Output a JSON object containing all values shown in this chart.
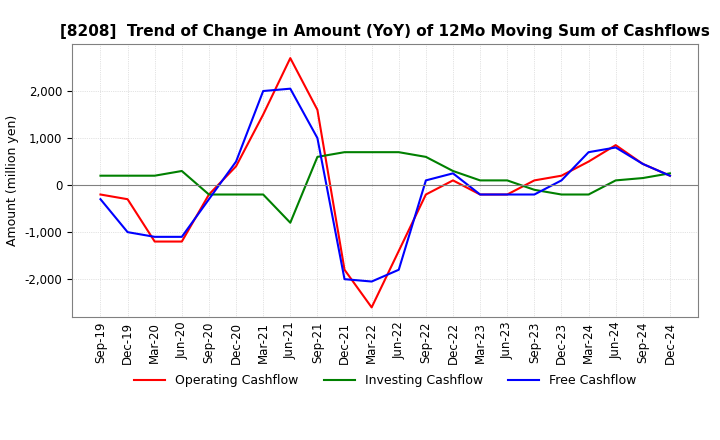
{
  "title": "[8208]  Trend of Change in Amount (YoY) of 12Mo Moving Sum of Cashflows",
  "ylabel": "Amount (million yen)",
  "ylim": [
    -2800,
    3000
  ],
  "yticks": [
    -2000,
    -1000,
    0,
    1000,
    2000
  ],
  "legend_labels": [
    "Operating Cashflow",
    "Investing Cashflow",
    "Free Cashflow"
  ],
  "legend_colors": [
    "#ff0000",
    "#008000",
    "#0000ff"
  ],
  "x_labels": [
    "Sep-19",
    "Dec-19",
    "Mar-20",
    "Jun-20",
    "Sep-20",
    "Dec-20",
    "Mar-21",
    "Jun-21",
    "Sep-21",
    "Dec-21",
    "Mar-22",
    "Jun-22",
    "Sep-22",
    "Dec-22",
    "Mar-23",
    "Jun-23",
    "Sep-23",
    "Dec-23",
    "Mar-24",
    "Jun-24",
    "Sep-24",
    "Dec-24"
  ],
  "operating": [
    -200,
    -300,
    -1200,
    -1200,
    -200,
    400,
    1500,
    2700,
    1600,
    -1800,
    -2600,
    -1400,
    -200,
    100,
    -200,
    -200,
    100,
    200,
    500,
    850,
    450,
    200
  ],
  "investing": [
    200,
    200,
    200,
    300,
    -200,
    -200,
    -200,
    -800,
    600,
    700,
    700,
    700,
    600,
    300,
    100,
    100,
    -100,
    -200,
    -200,
    100,
    150,
    250
  ],
  "free": [
    -300,
    -1000,
    -1100,
    -1100,
    -300,
    500,
    2000,
    2050,
    1000,
    -2000,
    -2050,
    -1800,
    100,
    250,
    -200,
    -200,
    -200,
    100,
    700,
    800,
    450,
    200
  ],
  "background_color": "#ffffff",
  "grid_color": "#c8c8c8",
  "title_fontsize": 11,
  "axis_fontsize": 9,
  "tick_fontsize": 8.5
}
